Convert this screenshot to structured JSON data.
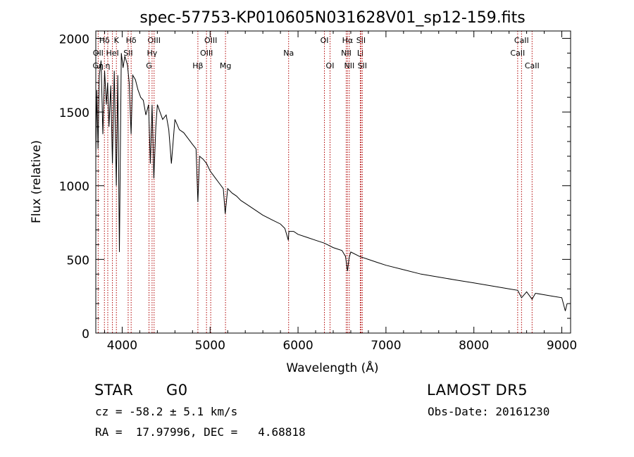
{
  "chart_data": {
    "type": "line",
    "title": "spec-57753-KP010605N031628V01_sp12-159.fits",
    "xlabel": "Wavelength (Å)",
    "ylabel": "Flux (relative)",
    "xlim": [
      3700,
      9100
    ],
    "ylim": [
      0,
      2050
    ],
    "x_ticks": [
      4000,
      5000,
      6000,
      7000,
      8000,
      9000
    ],
    "x_tick_labels": [
      "4000",
      "5000",
      "6000",
      "7000",
      "8000",
      "9000"
    ],
    "y_ticks": [
      0,
      500,
      1000,
      1500,
      2000
    ],
    "y_tick_labels": [
      "0",
      "500",
      "1000",
      "1500",
      "2000"
    ],
    "grid": false,
    "line_color": "#000000",
    "marker_color": "#b00000",
    "series": [
      {
        "x": [
          3700,
          3712,
          3725,
          3740,
          3760,
          3780,
          3800,
          3820,
          3835,
          3850,
          3870,
          3889,
          3910,
          3933,
          3950,
          3968,
          3990,
          4010,
          4030,
          4060,
          4080,
          4101,
          4120,
          4150,
          4180,
          4210,
          4240,
          4270,
          4300,
          4320,
          4340,
          4360,
          4383,
          4400,
          4430,
          4460,
          4500,
          4530,
          4560,
          4600,
          4650,
          4700,
          4750,
          4800,
          4840,
          4861,
          4880,
          4920,
          4960,
          5000,
          5050,
          5100,
          5150,
          5172,
          5200,
          5250,
          5300,
          5350,
          5400,
          5500,
          5600,
          5700,
          5800,
          5850,
          5890,
          5896,
          5950,
          6000,
          6100,
          6200,
          6300,
          6400,
          6500,
          6540,
          6563,
          6580,
          6600,
          6700,
          6800,
          6900,
          7000,
          7200,
          7400,
          7600,
          7800,
          8000,
          8200,
          8400,
          8498,
          8542,
          8600,
          8662,
          8700,
          8800,
          8900,
          9000,
          9040,
          9060
        ],
        "y": [
          1200,
          1650,
          1250,
          1750,
          1850,
          1350,
          1780,
          1550,
          1700,
          1400,
          1680,
          1150,
          1780,
          1000,
          1750,
          550,
          1900,
          1800,
          1880,
          1820,
          1700,
          1350,
          1750,
          1720,
          1650,
          1600,
          1580,
          1480,
          1550,
          1150,
          1550,
          1050,
          1400,
          1550,
          1500,
          1450,
          1480,
          1380,
          1150,
          1450,
          1380,
          1360,
          1320,
          1280,
          1250,
          890,
          1200,
          1180,
          1150,
          1100,
          1060,
          1020,
          980,
          810,
          980,
          950,
          930,
          900,
          880,
          840,
          800,
          770,
          740,
          710,
          630,
          690,
          690,
          670,
          650,
          630,
          610,
          580,
          560,
          520,
          420,
          510,
          550,
          520,
          500,
          480,
          460,
          430,
          400,
          380,
          360,
          340,
          320,
          300,
          290,
          240,
          280,
          230,
          270,
          260,
          250,
          240,
          150,
          200
        ]
      }
    ],
    "line_markers": [
      {
        "label": "Hδ",
        "wavelength": 3798,
        "row": 0
      },
      {
        "label": "OII",
        "wavelength": 3727,
        "row": 1
      },
      {
        "label": "Gη",
        "wavelength": 3726,
        "row": 2
      },
      {
        "label": "K",
        "wavelength": 3934,
        "row": 0
      },
      {
        "label": "HeI",
        "wavelength": 3889,
        "row": 1
      },
      {
        "label": "η",
        "wavelength": 3836,
        "row": 2
      },
      {
        "label": "Hδ",
        "wavelength": 4102,
        "row": 0
      },
      {
        "label": "SII",
        "wavelength": 4068,
        "row": 1
      },
      {
        "label": "OIII",
        "wavelength": 4363,
        "row": 0
      },
      {
        "label": "Hγ",
        "wavelength": 4340,
        "row": 1
      },
      {
        "label": "G",
        "wavelength": 4305,
        "row": 2
      },
      {
        "label": "Hβ",
        "wavelength": 4861,
        "row": 2
      },
      {
        "label": "OIII",
        "wavelength": 5007,
        "row": 0
      },
      {
        "label": "OIII",
        "wavelength": 4959,
        "row": 1
      },
      {
        "label": "Mg",
        "wavelength": 5175,
        "row": 2
      },
      {
        "label": "Na",
        "wavelength": 5893,
        "row": 1
      },
      {
        "label": "OI",
        "wavelength": 6300,
        "row": 0
      },
      {
        "label": "OI",
        "wavelength": 6364,
        "row": 2
      },
      {
        "label": "Hα",
        "wavelength": 6563,
        "row": 0
      },
      {
        "label": "NII",
        "wavelength": 6548,
        "row": 1
      },
      {
        "label": "NII",
        "wavelength": 6583,
        "row": 2
      },
      {
        "label": "SII",
        "wavelength": 6716,
        "row": 0
      },
      {
        "label": "Li",
        "wavelength": 6708,
        "row": 1
      },
      {
        "label": "SII",
        "wavelength": 6731,
        "row": 2
      },
      {
        "label": "CaII",
        "wavelength": 8542,
        "row": 0
      },
      {
        "label": "CaII",
        "wavelength": 8498,
        "row": 1
      },
      {
        "label": "CaII",
        "wavelength": 8662,
        "row": 2
      }
    ]
  },
  "info": {
    "object_class": "STAR",
    "subclass": "G0",
    "survey": "LAMOST DR5",
    "cz": "cz = -58.2 ± 5.1 km/s",
    "obs_date": "Obs-Date: 20161230",
    "coords": "RA =  17.97996, DEC =   4.68818"
  }
}
